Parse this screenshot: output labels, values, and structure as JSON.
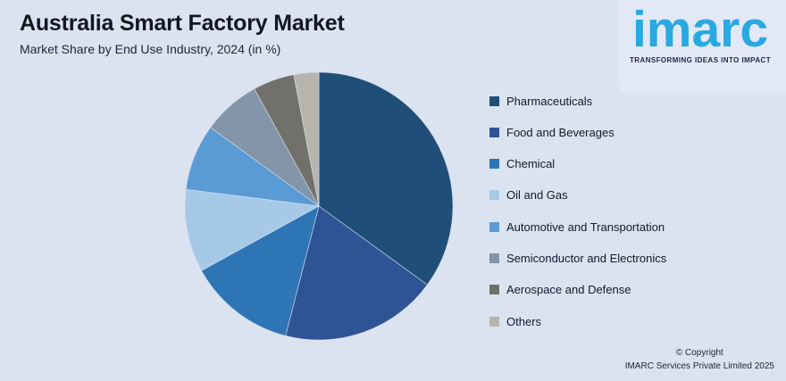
{
  "page": {
    "background": "#dbe2f0"
  },
  "header": {
    "title": "Australia Smart Factory Market",
    "subtitle": "Market Share by End Use Industry, 2024 (in %)"
  },
  "logo": {
    "brand": "imarc",
    "tagline": "TRANSFORMING IDEAS INTO IMPACT",
    "brand_color": "#29a9e1",
    "tagline_color": "#1c2b4d"
  },
  "legend": {
    "position": "right",
    "items": [
      {
        "label": "Pharmaceuticals",
        "color": "#1f4e79"
      },
      {
        "label": "Food and Beverages",
        "color": "#2f5496"
      },
      {
        "label": "Chemical",
        "color": "#2e75b6"
      },
      {
        "label": "Oil and Gas",
        "color": "#a6c9e8"
      },
      {
        "label": "Automotive and Transportation",
        "color": "#5b9bd5"
      },
      {
        "label": "Semiconductor and Electronics",
        "color": "#8295a9"
      },
      {
        "label": "Aerospace and Defense",
        "color": "#72706b"
      },
      {
        "label": "Others",
        "color": "#b7b4ae"
      }
    ]
  },
  "chart_data": {
    "type": "pie",
    "title": "Australia Smart Factory Market",
    "subtitle": "Market Share by End Use Industry, 2024 (in %)",
    "labels": [
      "Pharmaceuticals",
      "Food and Beverages",
      "Chemical",
      "Oil and Gas",
      "Automotive and Transportation",
      "Semiconductor and Electronics",
      "Aerospace and Defense",
      "Others"
    ],
    "values": [
      35,
      19,
      13,
      10,
      8,
      7,
      5,
      3
    ],
    "values_are_estimates_from_slice_angles": true,
    "colors": [
      "#1f4e79",
      "#2f5496",
      "#2e75b6",
      "#a6c9e8",
      "#5b9bd5",
      "#8295a9",
      "#72706b",
      "#b7b4ae"
    ],
    "start_angle": "top (12 o'clock), clockwise",
    "legend_position": "right",
    "data_labels_shown": false
  },
  "footer": {
    "copyright_line1": "© Copyright",
    "copyright_line2": "IMARC Services Private Limited 2025"
  }
}
